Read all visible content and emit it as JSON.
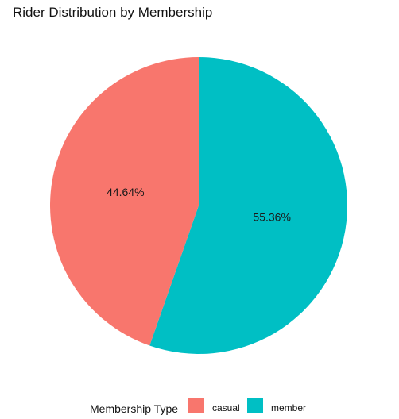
{
  "chart_data": {
    "type": "pie",
    "title": "Rider Distribution by Membership",
    "legend": {
      "title": "Membership Type",
      "position": "bottom"
    },
    "slices": [
      {
        "label": "casual",
        "value": 44.64,
        "value_label": "44.64%",
        "color": "#F8766D"
      },
      {
        "label": "member",
        "value": 55.36,
        "value_label": "55.36%",
        "color": "#00BFC4"
      }
    ]
  }
}
